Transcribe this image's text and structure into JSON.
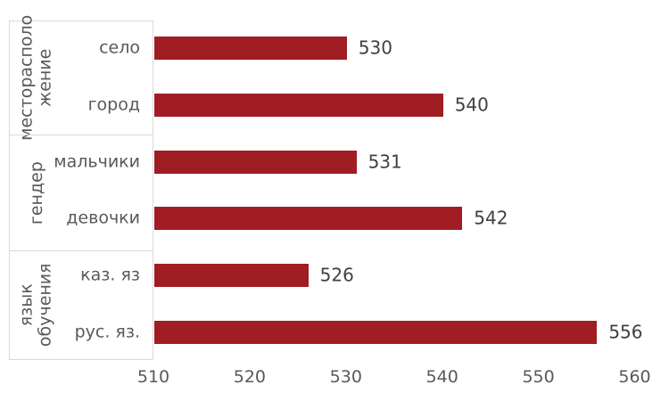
{
  "chart_data": {
    "type": "bar",
    "orientation": "horizontal",
    "title": "",
    "xlabel": "",
    "ylabel": "",
    "xlim": [
      510,
      560
    ],
    "x_ticks": [
      "510",
      "520",
      "530",
      "540",
      "550",
      "560"
    ],
    "gridlines": false,
    "legend": null,
    "groups": [
      {
        "label_lines": [
          "месторасполо",
          "жение"
        ],
        "rows": [
          {
            "category": "село",
            "value": 530,
            "value_label": "530"
          },
          {
            "category": "город",
            "value": 540,
            "value_label": "540"
          }
        ]
      },
      {
        "label_lines": [
          "гендер"
        ],
        "rows": [
          {
            "category": "мальчики",
            "value": 531,
            "value_label": "531"
          },
          {
            "category": "девочки",
            "value": 542,
            "value_label": "542"
          }
        ]
      },
      {
        "label_lines": [
          "язык",
          "обучения"
        ],
        "rows": [
          {
            "category": "каз. яз",
            "value": 526,
            "value_label": "526"
          },
          {
            "category": "рус. яз.",
            "value": 556,
            "value_label": "556"
          }
        ]
      }
    ],
    "colors": {
      "bar": "#A01D24",
      "box_border": "#D9D9D9",
      "category_text": "#595959",
      "group_text": "#595959",
      "value_text": "#404040",
      "tick_text": "#595959",
      "background": "#FFFFFF"
    }
  }
}
